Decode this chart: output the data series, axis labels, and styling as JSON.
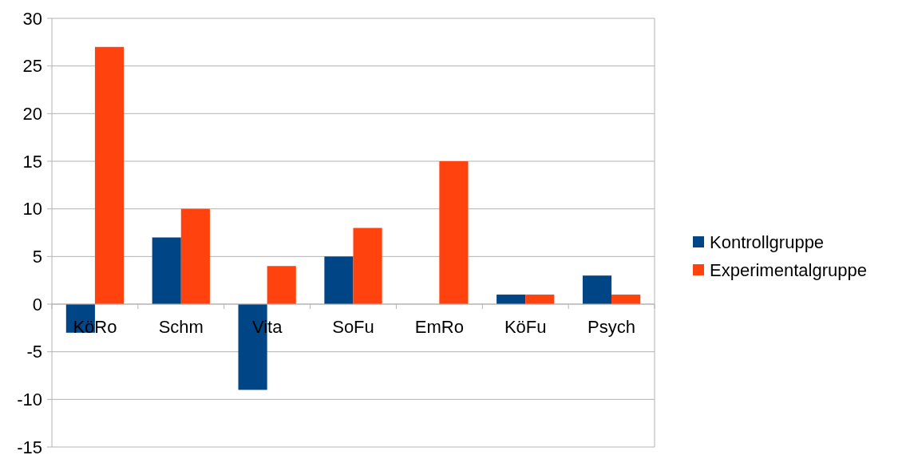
{
  "chart_data": {
    "type": "bar",
    "categories": [
      "KöRo",
      "Schm",
      "Vita",
      "SoFu",
      "EmRo",
      "KöFu",
      "Psych"
    ],
    "series": [
      {
        "name": "Kontrollgruppe",
        "color": "#004586",
        "values": [
          -3,
          7,
          -9,
          5,
          0,
          1,
          3
        ]
      },
      {
        "name": "Experimentalgruppe",
        "color": "#ff420e",
        "values": [
          27,
          10,
          4,
          8,
          15,
          1,
          1
        ]
      }
    ],
    "ylim": [
      -15,
      30
    ],
    "yticks": [
      -15,
      -10,
      -5,
      0,
      5,
      10,
      15,
      20,
      25,
      30
    ],
    "grid": "y",
    "legend": "right"
  }
}
